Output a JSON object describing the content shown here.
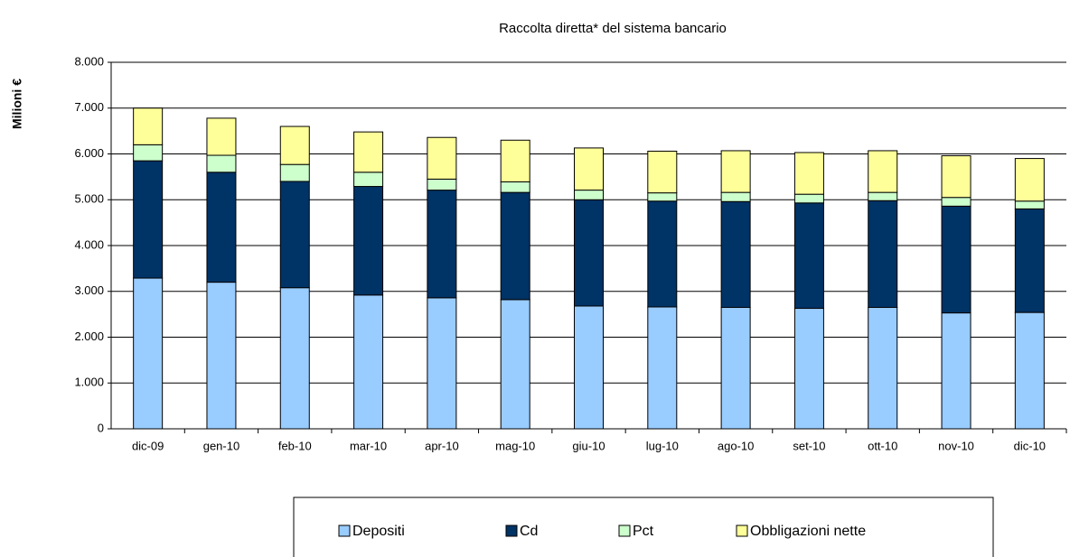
{
  "chart_data": {
    "type": "stacked_bar",
    "title": "Raccolta diretta* del sistema bancario",
    "y_label": "Milioni  €",
    "categories": [
      "dic-09",
      "gen-10",
      "feb-10",
      "mar-10",
      "apr-10",
      "mag-10",
      "giu-10",
      "lug-10",
      "ago-10",
      "set-10",
      "ott-10",
      "nov-10",
      "dic-10"
    ],
    "series": [
      {
        "name": "Depositi",
        "color": "#99ccff",
        "values": [
          3290,
          3200,
          3080,
          2920,
          2860,
          2820,
          2680,
          2660,
          2650,
          2630,
          2650,
          2530,
          2540
        ]
      },
      {
        "name": "Cd",
        "color": "#003366",
        "values": [
          2560,
          2400,
          2320,
          2370,
          2350,
          2340,
          2320,
          2310,
          2310,
          2300,
          2330,
          2330,
          2260
        ]
      },
      {
        "name": "Pct",
        "color": "#ccffcc",
        "values": [
          350,
          370,
          370,
          310,
          240,
          230,
          210,
          180,
          200,
          190,
          180,
          190,
          170
        ]
      },
      {
        "name": "Obbligazioni nette",
        "color": "#ffff99",
        "values": [
          800,
          810,
          830,
          880,
          910,
          910,
          920,
          910,
          910,
          910,
          910,
          910,
          930
        ]
      }
    ],
    "ylim": [
      0,
      8000
    ],
    "yticks": [
      0,
      {
        "value": 1000,
        "label": "1.000"
      },
      {
        "value": 2000,
        "label": "2.000"
      },
      {
        "value": 3000,
        "label": "3.000"
      },
      {
        "value": 4000,
        "label": "4.000"
      },
      {
        "value": 5000,
        "label": "5.000"
      },
      {
        "value": 6000,
        "label": "6.000"
      },
      {
        "value": 7000,
        "label": "7.000"
      },
      {
        "value": 8000,
        "label": "8.000"
      }
    ],
    "grid": true,
    "legend": "bottom"
  }
}
